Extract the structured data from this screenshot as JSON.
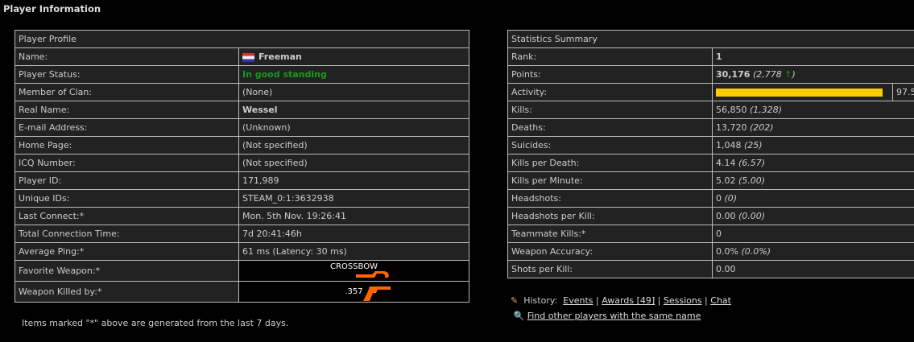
{
  "page_title": "Player Information",
  "profile": {
    "header": "Player Profile",
    "rows": [
      {
        "label": "Name:",
        "value": "Freeman"
      },
      {
        "label": "Player Status:",
        "value": "In good standing"
      },
      {
        "label": "Member of Clan:",
        "value": "(None)"
      },
      {
        "label": "Real Name:",
        "value": "Wessel"
      },
      {
        "label": "E-mail Address:",
        "value": "(Unknown)"
      },
      {
        "label": "Home Page:",
        "value": "(Not specified)"
      },
      {
        "label": "ICQ Number:",
        "value": "(Not specified)"
      },
      {
        "label": "Player ID:",
        "value": "171,989"
      },
      {
        "label": "Unique IDs:",
        "value": "STEAM_0:1:3632938"
      },
      {
        "label": "Last Connect:*",
        "value": "Mon. 5th Nov. 19:26:41"
      },
      {
        "label": "Total Connection Time:",
        "value": "7d 20:41:46h"
      },
      {
        "label": "Average Ping:*",
        "value": "61 ms (Latency: 30 ms)"
      },
      {
        "label": "Favorite Weapon:*",
        "value": "CROSSBOW"
      },
      {
        "label": "Weapon Killed by:*",
        "value": ".357"
      }
    ],
    "flag": "netherlands-flag-icon"
  },
  "note": "Items marked \"*\" above are generated from the last 7 days.",
  "stats": {
    "header": "Statistics Summary",
    "rank_label": "Rank:",
    "rank": "1",
    "points_label": "Points:",
    "points": "30,176",
    "points_change": "(2,778",
    "points_close": ")",
    "points_trend": "up",
    "trend_color": "#1a9a1a",
    "activity_label": "Activity:",
    "activity": 97.5,
    "activity_text": "97.5",
    "bar_color": "#ffcc00",
    "rows": [
      {
        "label": "Kills:",
        "value": "56,850",
        "sub": "(1,328)"
      },
      {
        "label": "Deaths:",
        "value": "13,720",
        "sub": "(202)"
      },
      {
        "label": "Suicides:",
        "value": "1,048",
        "sub": "(25)"
      },
      {
        "label": "Kills per Death:",
        "value": "4.14",
        "sub": "(6.57)"
      },
      {
        "label": "Kills per Minute:",
        "value": "5.02",
        "sub": "(5.00)"
      },
      {
        "label": "Headshots:",
        "value": "0",
        "sub": "(0)"
      },
      {
        "label": "Headshots per Kill:",
        "value": "0.00",
        "sub": "(0.00)"
      },
      {
        "label": "Teammate Kills:*",
        "value": "0",
        "sub": ""
      },
      {
        "label": "Weapon Accuracy:",
        "value": "0.0%",
        "sub": "(0.0%)"
      },
      {
        "label": "Shots per Kill:",
        "value": "0.00",
        "sub": ""
      }
    ]
  },
  "links": {
    "history_label": "History:",
    "events": "Events",
    "awards": "Awards [49]",
    "sessions": "Sessions",
    "chat": "Chat",
    "find": "Find other players with the same name"
  }
}
